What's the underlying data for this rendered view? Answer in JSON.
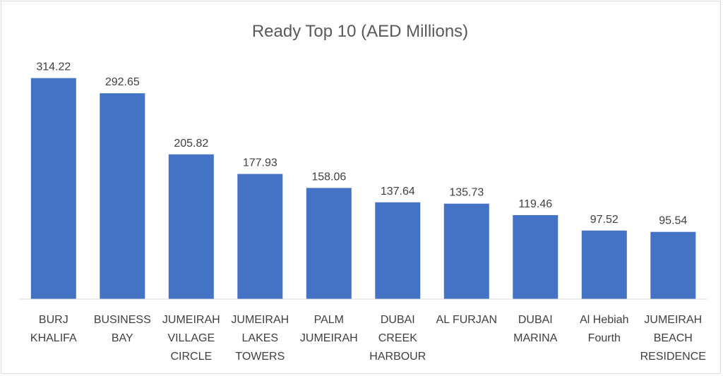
{
  "chart_data": {
    "type": "bar",
    "title": "Ready Top 10 (AED Millions)",
    "xlabel": "",
    "ylabel": "",
    "ylim": [
      0,
      340
    ],
    "grid": false,
    "legend": "none",
    "bar_color": "#4472c4",
    "categories": [
      [
        "BURJ",
        "KHALIFA"
      ],
      [
        "BUSINESS",
        "BAY"
      ],
      [
        "JUMEIRAH",
        "VILLAGE",
        "CIRCLE"
      ],
      [
        "JUMEIRAH",
        "LAKES",
        "TOWERS"
      ],
      [
        "PALM",
        "JUMEIRAH"
      ],
      [
        "DUBAI",
        "CREEK",
        "HARBOUR"
      ],
      [
        "AL FURJAN"
      ],
      [
        "DUBAI",
        "MARINA"
      ],
      [
        "Al Hebiah",
        "Fourth"
      ],
      [
        "JUMEIRAH",
        "BEACH",
        "RESIDENCE"
      ]
    ],
    "values": [
      314.22,
      292.65,
      205.82,
      177.93,
      158.06,
      137.64,
      135.73,
      119.46,
      97.52,
      95.54
    ],
    "value_labels": [
      "314.22",
      "292.65",
      "205.82",
      "177.93",
      "158.06",
      "137.64",
      "135.73",
      "119.46",
      "97.52",
      "95.54"
    ]
  }
}
